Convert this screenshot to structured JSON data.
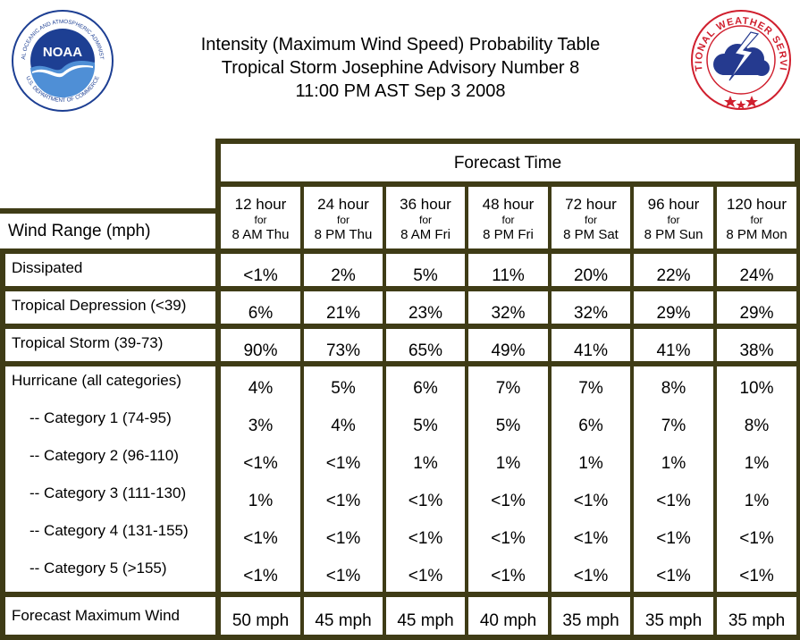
{
  "title": {
    "line1": "Intensity (Maximum Wind Speed) Probability Table",
    "line2": "Tropical Storm Josephine Advisory Number 8",
    "line3": "11:00 PM AST Sep 3 2008"
  },
  "logos": {
    "noaa_text": "NOAA",
    "noaa_ring": "NATIONAL OCEANIC AND ATMOSPHERIC ADMINISTRATION",
    "noaa_ring_bottom": "U.S. DEPARTMENT OF COMMERCE",
    "nws_text": "NATIONAL WEATHER SERVICE"
  },
  "table": {
    "forecast_time_label": "Forecast Time",
    "wind_range_label": "Wind Range (mph)",
    "columns": [
      {
        "hour": "12 hour",
        "for": "for",
        "time": "8 AM Thu"
      },
      {
        "hour": "24 hour",
        "for": "for",
        "time": "8 PM Thu"
      },
      {
        "hour": "36 hour",
        "for": "for",
        "time": "8 AM Fri"
      },
      {
        "hour": "48 hour",
        "for": "for",
        "time": "8 PM Fri"
      },
      {
        "hour": "72 hour",
        "for": "for",
        "time": "8 PM Sat"
      },
      {
        "hour": "96 hour",
        "for": "for",
        "time": "8 PM Sun"
      },
      {
        "hour": "120 hour",
        "for": "for",
        "time": "8 PM Mon"
      }
    ],
    "rows": [
      {
        "label": "Dissipated",
        "values": [
          "<1%",
          "2%",
          "5%",
          "11%",
          "20%",
          "22%",
          "24%"
        ]
      },
      {
        "label": "Tropical Depression (<39)",
        "values": [
          "6%",
          "21%",
          "23%",
          "32%",
          "32%",
          "29%",
          "29%"
        ]
      },
      {
        "label": "Tropical Storm (39-73)",
        "values": [
          "90%",
          "73%",
          "65%",
          "49%",
          "41%",
          "41%",
          "38%"
        ]
      },
      {
        "label": "Hurricane (all categories)",
        "values": [
          "4%",
          "5%",
          "6%",
          "7%",
          "7%",
          "8%",
          "10%"
        ]
      },
      {
        "label": "-- Category 1 (74-95)",
        "values": [
          "3%",
          "4%",
          "5%",
          "5%",
          "6%",
          "7%",
          "8%"
        ]
      },
      {
        "label": "-- Category 2 (96-110)",
        "values": [
          "<1%",
          "<1%",
          "1%",
          "1%",
          "1%",
          "1%",
          "1%"
        ]
      },
      {
        "label": "-- Category 3 (111-130)",
        "values": [
          "1%",
          "<1%",
          "<1%",
          "<1%",
          "<1%",
          "<1%",
          "1%"
        ]
      },
      {
        "label": "-- Category 4 (131-155)",
        "values": [
          "<1%",
          "<1%",
          "<1%",
          "<1%",
          "<1%",
          "<1%",
          "<1%"
        ]
      },
      {
        "label": "-- Category 5 (>155)",
        "values": [
          "<1%",
          "<1%",
          "<1%",
          "<1%",
          "<1%",
          "<1%",
          "<1%"
        ]
      },
      {
        "label": "Forecast Maximum Wind",
        "values": [
          "50 mph",
          "45 mph",
          "45 mph",
          "40 mph",
          "35 mph",
          "35 mph",
          "35 mph"
        ]
      }
    ]
  },
  "colors": {
    "grid": "#3f3c16",
    "noaa_blue": "#1d3f93",
    "noaa_light": "#4f8fd6",
    "nws_red": "#d01f2e",
    "nws_cloud": "#253a8f"
  }
}
